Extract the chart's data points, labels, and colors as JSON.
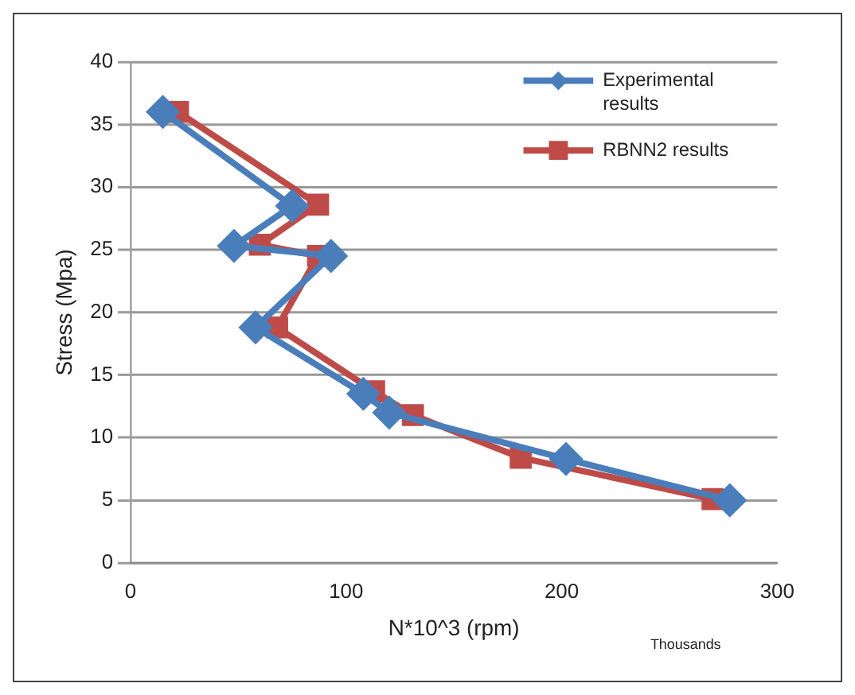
{
  "chart_data": {
    "type": "line",
    "xlabel": "N*10^3 (rpm)",
    "ylabel": "Stress (Mpa)",
    "annotations": [
      "Thousands"
    ],
    "xlim": [
      0,
      300
    ],
    "xticks": [
      0,
      100,
      200,
      300
    ],
    "ylim": [
      0,
      40
    ],
    "yticks": [
      0,
      5,
      10,
      15,
      20,
      25,
      30,
      35,
      40
    ],
    "grid": "y",
    "legend": "top right",
    "series": [
      {
        "name": "Experimental results",
        "color": "#4a7ebb",
        "marker": "diamond",
        "x": [
          15,
          75,
          48,
          93,
          58,
          108,
          120,
          202,
          278
        ],
        "values": [
          36,
          28.5,
          25.3,
          24.5,
          18.8,
          13.5,
          12,
          8.3,
          5
        ]
      },
      {
        "name": "RBNN2 results",
        "color": "#be4b48",
        "marker": "square",
        "x": [
          22,
          87,
          60,
          87,
          68,
          113,
          131,
          181,
          270
        ],
        "values": [
          36,
          28.6,
          25.4,
          24.5,
          18.8,
          13.7,
          11.8,
          8.4,
          5.1
        ]
      }
    ]
  }
}
